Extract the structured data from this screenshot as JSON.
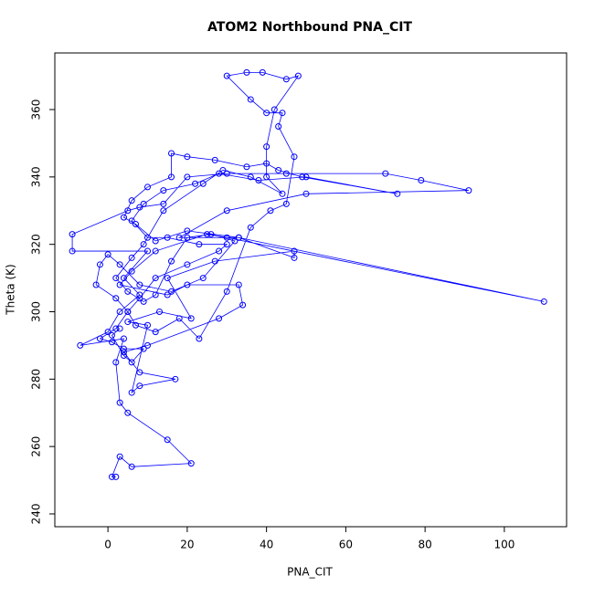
{
  "chart_data": {
    "type": "line",
    "title": "ATOM2 Northbound PNA_CIT",
    "x_label": "PNA_CIT",
    "y_label": "Theta (K)",
    "xlim": [
      -13.4,
      115.7
    ],
    "ylim": [
      236.2,
      376.8
    ],
    "xticks": [
      0,
      20,
      40,
      60,
      80,
      100
    ],
    "yticks": [
      240,
      260,
      280,
      300,
      320,
      340,
      360
    ],
    "series": [
      {
        "color": "#0000ff",
        "x": [
          2,
          1,
          3,
          6,
          21,
          15,
          5,
          3,
          2,
          4,
          -7,
          0,
          3,
          8,
          4,
          10,
          -9,
          -9,
          5,
          8,
          14,
          20,
          30,
          45,
          70,
          79,
          91,
          50,
          30,
          18,
          33,
          110,
          30,
          25,
          12,
          6,
          3,
          15,
          20,
          33,
          34,
          28,
          10,
          4,
          8,
          17,
          8,
          6,
          10,
          5,
          13,
          21,
          15,
          27,
          47,
          47,
          33,
          20,
          12,
          7,
          4,
          6,
          10,
          16,
          16,
          20,
          27,
          35,
          40,
          43,
          49,
          73,
          50,
          38,
          28,
          22,
          14,
          9,
          6,
          10,
          15,
          23,
          30,
          28,
          20,
          12,
          8,
          5,
          7,
          12,
          18,
          23,
          30,
          36,
          41,
          45,
          47,
          43,
          44,
          40,
          36,
          30,
          35,
          39,
          45,
          48,
          42,
          40,
          40,
          44,
          36,
          29,
          24,
          14,
          9,
          6,
          2,
          5,
          9,
          12,
          16,
          20,
          26,
          32,
          24,
          16,
          8,
          3,
          0,
          -2,
          -3,
          2,
          5,
          2,
          -2,
          1,
          4,
          9,
          6,
          4,
          1,
          3
        ],
        "values": [
          251,
          251,
          257,
          254,
          255,
          262,
          270,
          273,
          285,
          292,
          290,
          294,
          300,
          305,
          310,
          318,
          318,
          323,
          330,
          331,
          332,
          340,
          341,
          341,
          341,
          339,
          336,
          335,
          330,
          322,
          322,
          303,
          322,
          323,
          318,
          312,
          308,
          305,
          308,
          308,
          302,
          298,
          290,
          288,
          282,
          280,
          278,
          276,
          296,
          297,
          300,
          298,
          310,
          315,
          318,
          316,
          322,
          324,
          321,
          326,
          328,
          333,
          337,
          340,
          347,
          346,
          345,
          343,
          344,
          342,
          340,
          335,
          340,
          339,
          341,
          338,
          336,
          332,
          327,
          322,
          322,
          320,
          320,
          318,
          314,
          310,
          304,
          300,
          296,
          294,
          298,
          292,
          306,
          325,
          330,
          332,
          346,
          355,
          359,
          359,
          363,
          370,
          371,
          371,
          369,
          370,
          360,
          349,
          340,
          335,
          340,
          342,
          338,
          330,
          320,
          316,
          310,
          306,
          303,
          305,
          315,
          322,
          323,
          321,
          310,
          306,
          308,
          314,
          317,
          314,
          308,
          304,
          300,
          295,
          292,
          291,
          289,
          289,
          285,
          287,
          293,
          295
        ]
      }
    ]
  }
}
